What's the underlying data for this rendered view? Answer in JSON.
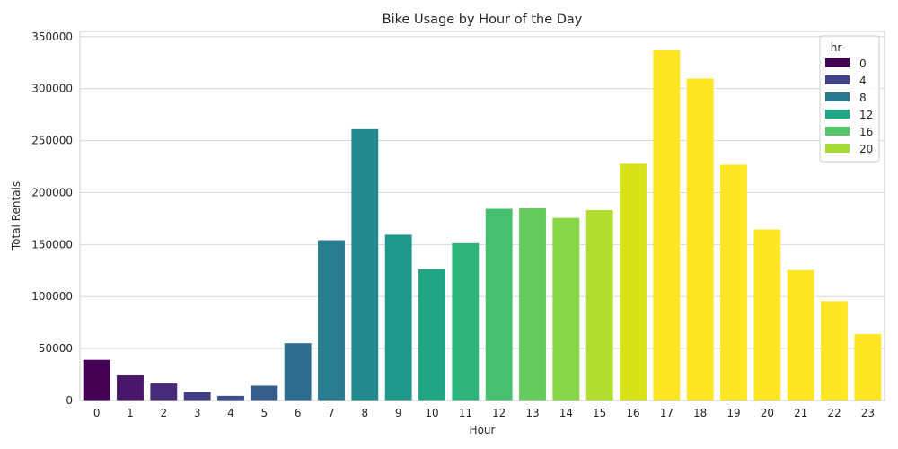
{
  "chart_data": {
    "type": "bar",
    "title": "Bike Usage by Hour of the Day",
    "xlabel": "Hour",
    "ylabel": "Total Rentals",
    "ylim": [
      0,
      355000
    ],
    "yticks": [
      0,
      50000,
      100000,
      150000,
      200000,
      250000,
      300000,
      350000
    ],
    "ytick_labels": [
      "0",
      "50000",
      "100000",
      "150000",
      "200000",
      "250000",
      "300000",
      "350000"
    ],
    "categories": [
      "0",
      "1",
      "2",
      "3",
      "4",
      "5",
      "6",
      "7",
      "8",
      "9",
      "10",
      "11",
      "12",
      "13",
      "14",
      "15",
      "16",
      "17",
      "18",
      "19",
      "20",
      "21",
      "22",
      "23"
    ],
    "values": [
      39130,
      24164,
      16352,
      8174,
      4428,
      14261,
      55132,
      154171,
      261001,
      159438,
      126257,
      151320,
      184414,
      184919,
      175652,
      183149,
      227748,
      336860,
      309772,
      226789,
      164550,
      125445,
      95612,
      63941
    ],
    "colors": [
      "#440154",
      "#481a6c",
      "#472f7d",
      "#414487",
      "#39568c",
      "#31688e",
      "#2a788e",
      "#23888e",
      "#1f988b",
      "#22a884",
      "#35b779",
      "#54c568",
      "#7ad151",
      "#a5db36",
      "#d2e21b",
      "#fde725"
    ],
    "bar_colors": [
      "#440154",
      "#481769",
      "#472a7a",
      "#433d84",
      "#3d4e8a",
      "#355e8d",
      "#2e6d8e",
      "#297b8e",
      "#23898e",
      "#1f978b",
      "#21a585",
      "#2eb37c",
      "#46c06f",
      "#65cb5e",
      "#89d548",
      "#b0dd2f",
      "#d8e219",
      "#fde725",
      "#fde725",
      "#fde725",
      "#fde725",
      "#fde725",
      "#fde725",
      "#fde725"
    ],
    "grid": true,
    "legend": {
      "title": "hr",
      "placement": "top-right",
      "entries": [
        {
          "label": "0",
          "color": "#440154"
        },
        {
          "label": "4",
          "color": "#414487"
        },
        {
          "label": "8",
          "color": "#2a788e"
        },
        {
          "label": "12",
          "color": "#22a884"
        },
        {
          "label": "16",
          "color": "#54c568"
        },
        {
          "label": "20",
          "color": "#a5db36"
        }
      ]
    }
  }
}
